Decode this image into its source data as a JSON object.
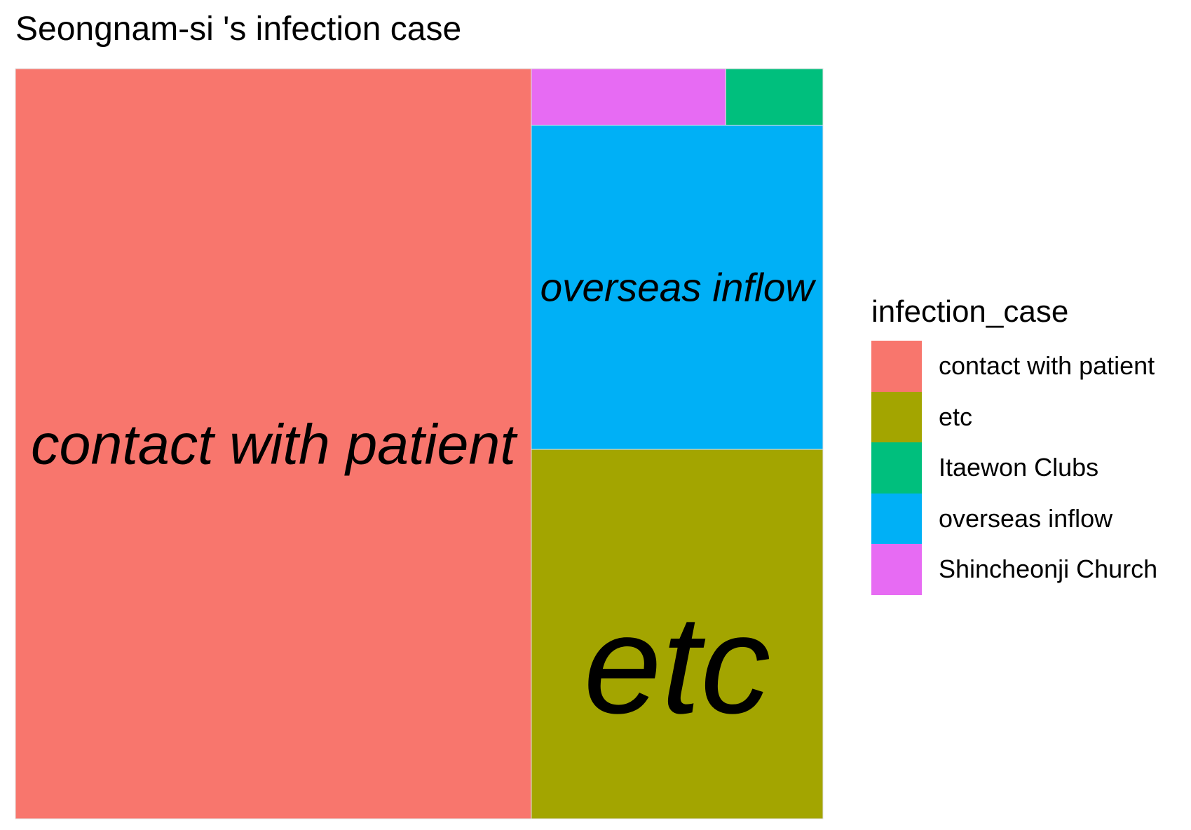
{
  "chart_data": {
    "type": "treemap",
    "title": "Seongnam-si 's infection case",
    "legend_title": "infection_case",
    "legend_position": "right",
    "tiles": [
      {
        "name": "contact with patient",
        "value": 176,
        "color": "#F8766D",
        "label_shown": true
      },
      {
        "name": "etc",
        "value": 49,
        "color": "#A3A500",
        "label_shown": true
      },
      {
        "name": "overseas inflow",
        "value": 43,
        "color": "#00B0F6",
        "label_shown": true
      },
      {
        "name": "Shincheonji Church",
        "value": 5,
        "color": "#E76BF3",
        "label_shown": false
      },
      {
        "name": "Itaewon Clubs",
        "value": 2.5,
        "color": "#00BF7D",
        "label_shown": false
      }
    ],
    "legend_entries": [
      {
        "label": "contact with patient",
        "color": "#F8766D"
      },
      {
        "label": "etc",
        "color": "#A3A500"
      },
      {
        "label": "Itaewon Clubs",
        "color": "#00BF7D"
      },
      {
        "label": "overseas inflow",
        "color": "#00B0F6"
      },
      {
        "label": "Shincheonji Church",
        "color": "#E76BF3"
      }
    ]
  }
}
